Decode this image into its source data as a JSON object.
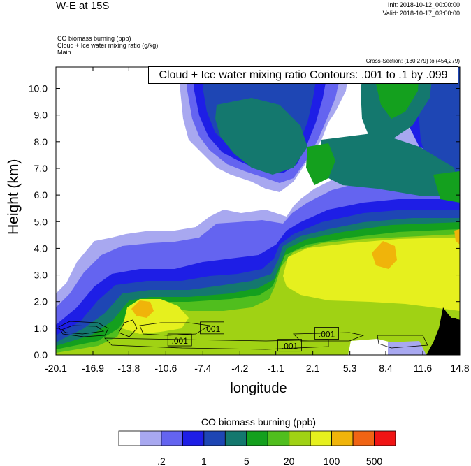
{
  "header": {
    "title": "W-E at 15S",
    "init": "Init: 2018-10-12_00:00:00",
    "valid": "Valid: 2018-10-17_03:00:00",
    "field1": "CO biomass burning   (ppb)",
    "field2": "Cloud + Ice water mixing ratio   (g/kg)",
    "field3": "Main",
    "cross_section": "Cross-Section: (130,279) to (454,279)"
  },
  "annotation": "Cloud + Ice water mixing ratio Contours: .001 to .1 by .099",
  "colorbar": {
    "title": "CO biomass burning  (ppb)",
    "colors": [
      "#ffffff",
      "#a8a8f0",
      "#6464f0",
      "#1e1ee6",
      "#1e46b4",
      "#14786e",
      "#14a01e",
      "#50be1e",
      "#a0d214",
      "#e6f01e",
      "#f0b40a",
      "#f06414",
      "#f01414"
    ],
    "labels": [
      ".2",
      "1",
      "5",
      "20",
      "100",
      "500"
    ]
  },
  "chart_data": {
    "type": "heatmap",
    "xlabel": "longitude",
    "ylabel": "Height (km)",
    "x_ticks": [
      "-20.1",
      "-16.9",
      "-13.8",
      "-10.6",
      "-7.4",
      "-4.2",
      "-1.1",
      "2.1",
      "5.3",
      "8.4",
      "11.6",
      "14.8"
    ],
    "y_ticks": [
      "0.0",
      "1.0",
      "2.0",
      "3.0",
      "4.0",
      "5.0",
      "6.0",
      "7.0",
      "8.0",
      "9.0",
      "10.0"
    ],
    "xlim": [
      -20.1,
      14.8
    ],
    "ylim": [
      0,
      10.8
    ],
    "contour_labels": [
      {
        "text": ".001",
        "x": -9.4,
        "y": 0.55
      },
      {
        "text": ".001",
        "x": -6.6,
        "y": 1.0
      },
      {
        "text": ".001",
        "x": 0.1,
        "y": 0.35
      },
      {
        "text": ".001",
        "x": 3.3,
        "y": 0.8
      }
    ]
  }
}
